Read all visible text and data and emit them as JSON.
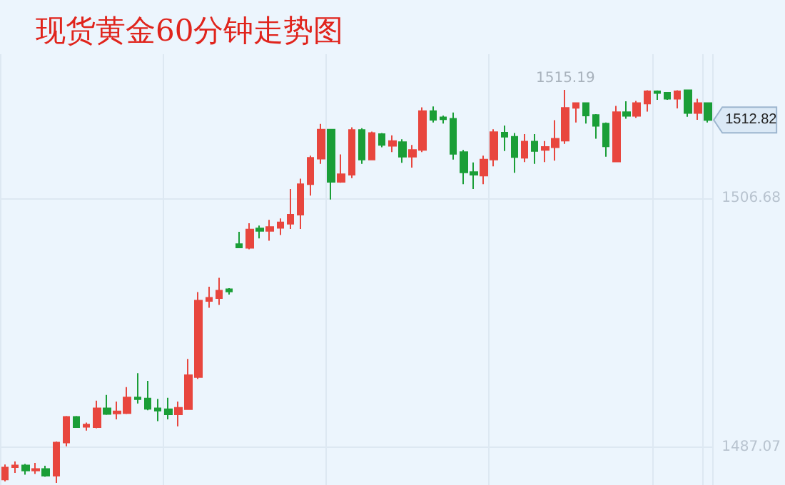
{
  "chart_data": {
    "type": "candlestick",
    "title": "现货黄金60分钟走势图",
    "categories": [
      null,
      null,
      null,
      null,
      null,
      null,
      null,
      null,
      null,
      null,
      null,
      null,
      null,
      null,
      null,
      null,
      null,
      null,
      null,
      null,
      null,
      null,
      null,
      null,
      null,
      null,
      null,
      null,
      null,
      null,
      null,
      null,
      null,
      null,
      null,
      null,
      null,
      null,
      null,
      null,
      null,
      null,
      null,
      null,
      null,
      null,
      null,
      null,
      null,
      null,
      null,
      null,
      null,
      null,
      null,
      null,
      null,
      null,
      null,
      null,
      null,
      null,
      null,
      null,
      null,
      null,
      null,
      null,
      null,
      null
    ],
    "ohlc": [
      [
        1484.53,
        1485.72,
        1484.38,
        1485.47
      ],
      [
        1485.5,
        1485.95,
        1485.05,
        1485.65
      ],
      [
        1485.65,
        1485.76,
        1484.91,
        1485.24
      ],
      [
        1485.24,
        1485.84,
        1484.97,
        1485.36
      ],
      [
        1485.36,
        1485.61,
        1484.75,
        1484.83
      ],
      [
        1484.83,
        1487.52,
        1484.27,
        1487.44
      ],
      [
        1487.44,
        1489.53,
        1487.15,
        1489.46
      ],
      [
        1489.46,
        1489.53,
        1488.64,
        1488.64
      ],
      [
        1488.67,
        1489.01,
        1488.38,
        1488.86
      ],
      [
        1488.64,
        1490.73,
        1488.56,
        1490.13
      ],
      [
        1490.13,
        1491.18,
        1489.61,
        1489.68
      ],
      [
        1489.72,
        1490.66,
        1489.27,
        1489.9
      ],
      [
        1489.76,
        1491.81,
        1489.68,
        1490.99
      ],
      [
        1490.99,
        1492.9,
        1490.51,
        1490.85
      ],
      [
        1490.91,
        1492.3,
        1489.98,
        1490.09
      ],
      [
        1490.13,
        1490.88,
        1489.12,
        1489.95
      ],
      [
        1490.06,
        1490.96,
        1489.27,
        1489.65
      ],
      [
        1489.65,
        1490.66,
        1488.72,
        1490.17
      ],
      [
        1490.06,
        1494.02,
        1490.06,
        1492.75
      ],
      [
        1492.59,
        1499.28,
        1492.45,
        1498.61
      ],
      [
        1498.58,
        1499.7,
        1498.05,
        1498.84
      ],
      [
        1498.81,
        1500.41,
        1498.27,
        1499.4
      ],
      [
        1499.51,
        1499.59,
        1499.09,
        1499.32
      ],
      [
        1503.06,
        1504.02,
        1502.76,
        1502.79
      ],
      [
        1502.76,
        1504.7,
        1502.65,
        1504.21
      ],
      [
        1504.29,
        1504.52,
        1503.51,
        1504.1
      ],
      [
        1504.1,
        1504.97,
        1503.32,
        1504.41
      ],
      [
        1504.33,
        1505.08,
        1503.77,
        1504.77
      ],
      [
        1504.66,
        1507.39,
        1504.25,
        1505.37
      ],
      [
        1505.37,
        1508.21,
        1504.25,
        1507.77
      ],
      [
        1507.77,
        1510.01,
        1506.87,
        1509.85
      ],
      [
        1509.78,
        1512.51,
        1509.37,
        1512.06
      ],
      [
        1512.06,
        1512.1,
        1506.57,
        1507.95
      ],
      [
        1507.95,
        1510.12,
        1507.88,
        1508.55
      ],
      [
        1508.51,
        1512.25,
        1508.25,
        1512.03
      ],
      [
        1512.03,
        1512.17,
        1509.37,
        1509.71
      ],
      [
        1509.71,
        1511.91,
        1509.67,
        1511.8
      ],
      [
        1511.72,
        1511.8,
        1510.68,
        1510.86
      ],
      [
        1510.79,
        1511.61,
        1510.3,
        1511.16
      ],
      [
        1511.08,
        1511.31,
        1509.45,
        1509.93
      ],
      [
        1509.93,
        1510.86,
        1509.07,
        1510.46
      ],
      [
        1510.46,
        1513.82,
        1510.3,
        1513.52
      ],
      [
        1513.52,
        1513.89,
        1512.62,
        1512.84
      ],
      [
        1513.03,
        1513.18,
        1512.54,
        1512.88
      ],
      [
        1512.92,
        1513.41,
        1509.71,
        1510.15
      ],
      [
        1510.3,
        1510.46,
        1507.77,
        1508.7
      ],
      [
        1508.73,
        1509.48,
        1507.39,
        1508.51
      ],
      [
        1508.44,
        1510.01,
        1507.77,
        1509.71
      ],
      [
        1509.71,
        1512.09,
        1509.18,
        1511.87
      ],
      [
        1511.83,
        1512.39,
        1510.38,
        1511.5
      ],
      [
        1511.5,
        1511.8,
        1508.67,
        1509.9
      ],
      [
        1509.85,
        1511.72,
        1509.51,
        1511.13
      ],
      [
        1511.13,
        1511.72,
        1509.37,
        1510.38
      ],
      [
        1510.46,
        1511.16,
        1509.51,
        1510.71
      ],
      [
        1510.68,
        1512.81,
        1509.63,
        1511.35
      ],
      [
        1511.2,
        1515.19,
        1510.94,
        1513.77
      ],
      [
        1513.77,
        1514.15,
        1512.62,
        1514.15
      ],
      [
        1514.15,
        1514.16,
        1512.54,
        1513.18
      ],
      [
        1513.21,
        1513.29,
        1511.35,
        1512.36
      ],
      [
        1512.54,
        1512.62,
        1509.93,
        1510.75
      ],
      [
        1509.56,
        1513.93,
        1509.56,
        1513.44
      ],
      [
        1513.44,
        1514.3,
        1512.92,
        1513.15
      ],
      [
        1513.15,
        1514.33,
        1512.99,
        1514.15
      ],
      [
        1514.11,
        1515.16,
        1513.48,
        1515.08
      ],
      [
        1515.08,
        1515.15,
        1514.41,
        1514.94
      ],
      [
        1514.97,
        1514.98,
        1514.41,
        1514.49
      ],
      [
        1514.49,
        1515.16,
        1513.74,
        1515.08
      ],
      [
        1515.16,
        1515.17,
        1513.07,
        1513.37
      ],
      [
        1513.37,
        1514.49,
        1512.84,
        1514.15
      ],
      [
        1514.15,
        1514.16,
        1512.62,
        1512.82
      ]
    ],
    "colors": [
      "#e8463e",
      "#e8463e",
      "#1a9e37",
      "#e8463e",
      "#1a9e37",
      "#e8463e",
      "#e8463e",
      "#1a9e37",
      "#e8463e",
      "#e8463e",
      "#1a9e37",
      "#e8463e",
      "#e8463e",
      "#1a9e37",
      "#1a9e37",
      "#1a9e37",
      "#1a9e37",
      "#e8463e",
      "#e8463e",
      "#e8463e",
      "#e8463e",
      "#e8463e",
      "#1a9e37",
      "#1a9e37",
      "#e8463e",
      "#1a9e37",
      "#e8463e",
      "#e8463e",
      "#e8463e",
      "#e8463e",
      "#e8463e",
      "#e8463e",
      "#1a9e37",
      "#e8463e",
      "#e8463e",
      "#1a9e37",
      "#e8463e",
      "#1a9e37",
      "#e8463e",
      "#1a9e37",
      "#e8463e",
      "#e8463e",
      "#1a9e37",
      "#1a9e37",
      "#1a9e37",
      "#1a9e37",
      "#1a9e37",
      "#e8463e",
      "#e8463e",
      "#1a9e37",
      "#1a9e37",
      "#e8463e",
      "#1a9e37",
      "#e8463e",
      "#e8463e",
      "#e8463e",
      "#e8463e",
      "#1a9e37",
      "#1a9e37",
      "#1a9e37",
      "#e8463e",
      "#1a9e37",
      "#e8463e",
      "#e8463e",
      "#1a9e37",
      "#1a9e37",
      "#e8463e",
      "#1a9e37",
      "#e8463e",
      "#1a9e37"
    ],
    "ylim": [
      1484.1,
      1518.0
    ],
    "yticks": [
      1487.07,
      1506.68
    ],
    "grid": true,
    "tick_labels": "y",
    "annotations": [
      {
        "text": "1515.19",
        "y": 1515.19
      },
      "1512.82"
    ]
  }
}
